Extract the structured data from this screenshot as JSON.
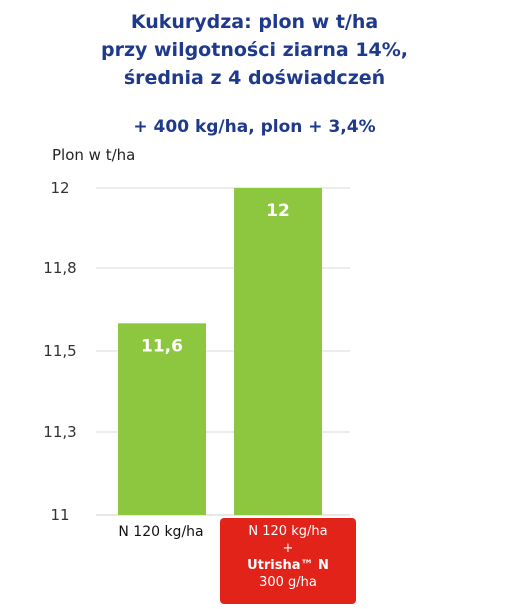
{
  "title_lines": [
    "Kukurydza: plon w t/ha",
    "przy wilgotności ziarna 14%,",
    "średnia z 4 doświadczeń"
  ],
  "subtitle": "+ 400 kg/ha, plon + 3,4%",
  "colors": {
    "title": "#1f3a8a",
    "bar": "#8dc63f",
    "highlight": "#e2231a"
  },
  "chart_data": {
    "type": "bar",
    "title": "Kukurydza: plon w t/ha przy wilgotności ziarna 14%, średnia z 4 doświadczeń",
    "subtitle": "+ 400 kg/ha, plon + 3,4%",
    "ylabel": "Plon w t/ha",
    "xlabel": "",
    "categories": [
      "N 120 kg/ha",
      "N 120 kg/ha + Utrisha™ N 300 g/ha"
    ],
    "values": [
      11.6,
      12
    ],
    "data_labels": [
      "11,6",
      "12"
    ],
    "ylim": [
      11,
      12
    ],
    "yticks": [
      11,
      11.3,
      11.5,
      11.8,
      12
    ],
    "ytick_labels": [
      "11",
      "11,3",
      "11,5",
      "11,8",
      "12"
    ],
    "grid": true,
    "legend": "none"
  },
  "category_labels": {
    "first": "N 120 kg/ha",
    "second_line1": "N 120 kg/ha",
    "second_line2": "+",
    "second_line3": "Utrisha™ N",
    "second_line4": "300 g/ha"
  }
}
